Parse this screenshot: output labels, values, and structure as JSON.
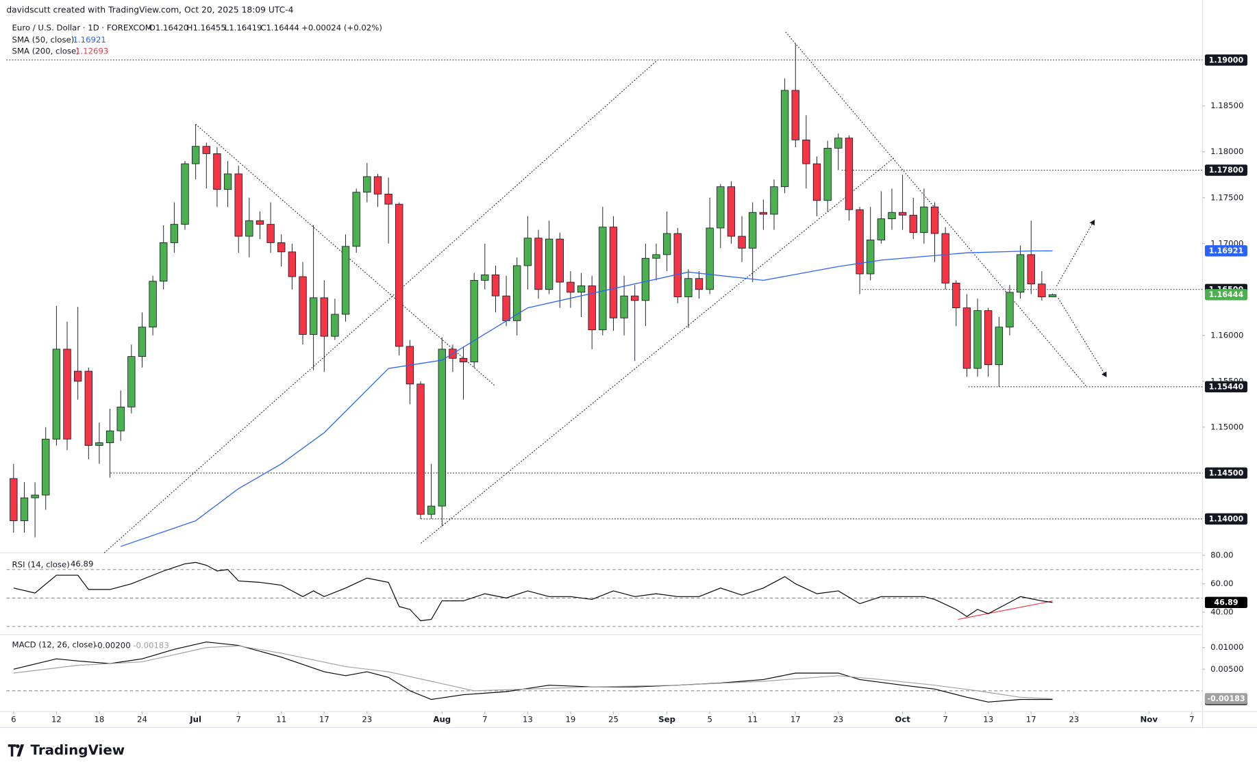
{
  "header": {
    "credit": "davidscutt created with TradingView.com, Oct 20, 2025 18:09 UTC-4",
    "brand": "TradingView"
  },
  "chart_data": [
    {
      "type": "candlestick",
      "title": "Euro / U.S. Dollar · 1D · FOREXCOM",
      "ohlc": [
        "O1.16420",
        "H1.16455",
        "L1.16419",
        "C1.16444"
      ],
      "change": "+0.00024 (+0.02%)",
      "up_color": "#4caf50",
      "down_color": "#f23645",
      "open": [
        1.1444,
        1.1398,
        1.1423,
        1.1426,
        1.1487,
        1.1585,
        1.1561,
        1.1561,
        1.148,
        1.1483,
        1.1496,
        1.1522,
        1.1577,
        1.1609,
        1.1659,
        1.1701,
        1.1721,
        1.1787,
        1.1806,
        1.1798,
        1.1759,
        1.1776,
        1.1708,
        1.1725,
        1.1721,
        1.1701,
        1.1691,
        1.1664,
        1.1601,
        1.1641,
        1.1599,
        1.1623,
        1.1697,
        1.1756,
        1.1773,
        1.1754,
        1.1743,
        1.1588,
        1.1547,
        1.1405,
        1.1414,
        1.1585,
        1.1575,
        1.1571,
        1.166,
        1.1666,
        1.1643,
        1.1616,
        1.1676,
        1.1706,
        1.165,
        1.1705,
        1.1658,
        1.1647,
        1.1654,
        1.1606,
        1.1718,
        1.1619,
        1.1643,
        1.1638,
        1.1684,
        1.1688,
        1.1711,
        1.1642,
        1.1662,
        1.165,
        1.1717,
        1.1762,
        1.1708,
        1.1695,
        1.1734,
        1.1732,
        1.1762,
        1.1867,
        1.1813,
        1.1787,
        1.1747,
        1.1804,
        1.1815,
        1.1737,
        1.1667,
        1.1704,
        1.1727,
        1.1734,
        1.1731,
        1.1712,
        1.174,
        1.1711,
        1.1657,
        1.163,
        1.1564,
        1.1627,
        1.1568,
        1.1609,
        1.1647,
        1.1688,
        1.1656,
        1.1642
      ],
      "high": [
        1.146,
        1.144,
        1.144,
        1.15,
        1.1632,
        1.1615,
        1.1631,
        1.1565,
        1.1505,
        1.152,
        1.154,
        1.159,
        1.1625,
        1.1665,
        1.172,
        1.1745,
        1.179,
        1.183,
        1.181,
        1.1805,
        1.179,
        1.1785,
        1.175,
        1.1735,
        1.1745,
        1.171,
        1.17,
        1.168,
        1.172,
        1.166,
        1.164,
        1.171,
        1.176,
        1.1788,
        1.1776,
        1.1772,
        1.1745,
        1.1595,
        1.155,
        1.146,
        1.1598,
        1.159,
        1.1588,
        1.1668,
        1.17,
        1.1676,
        1.1665,
        1.1685,
        1.173,
        1.1715,
        1.1725,
        1.1712,
        1.167,
        1.1668,
        1.1665,
        1.174,
        1.173,
        1.1665,
        1.1655,
        1.17,
        1.17,
        1.1735,
        1.1717,
        1.1672,
        1.167,
        1.175,
        1.1765,
        1.1768,
        1.173,
        1.1745,
        1.1748,
        1.177,
        1.188,
        1.1918,
        1.184,
        1.1795,
        1.1812,
        1.182,
        1.1818,
        1.174,
        1.174,
        1.1757,
        1.176,
        1.1775,
        1.175,
        1.176,
        1.1745,
        1.1718,
        1.166,
        1.1645,
        1.164,
        1.163,
        1.162,
        1.1655,
        1.1698,
        1.1725,
        1.167,
        1.16455
      ],
      "low": [
        1.1385,
        1.1385,
        1.138,
        1.141,
        1.148,
        1.1475,
        1.153,
        1.1465,
        1.146,
        1.1445,
        1.1485,
        1.1515,
        1.1565,
        1.16,
        1.165,
        1.169,
        1.1715,
        1.177,
        1.176,
        1.174,
        1.174,
        1.169,
        1.1685,
        1.1705,
        1.169,
        1.1675,
        1.165,
        1.159,
        1.1562,
        1.156,
        1.1595,
        1.1615,
        1.169,
        1.1745,
        1.174,
        1.17,
        1.1578,
        1.1525,
        1.14,
        1.14,
        1.1392,
        1.156,
        1.153,
        1.1565,
        1.165,
        1.1625,
        1.161,
        1.16,
        1.165,
        1.164,
        1.1645,
        1.163,
        1.163,
        1.162,
        1.1585,
        1.16,
        1.1605,
        1.16,
        1.1572,
        1.161,
        1.166,
        1.167,
        1.1635,
        1.1608,
        1.164,
        1.1645,
        1.1695,
        1.17,
        1.168,
        1.1658,
        1.1715,
        1.1715,
        1.1755,
        1.1805,
        1.176,
        1.173,
        1.1735,
        1.178,
        1.1725,
        1.1645,
        1.166,
        1.17,
        1.1715,
        1.1715,
        1.1705,
        1.17,
        1.168,
        1.165,
        1.161,
        1.1555,
        1.1555,
        1.1555,
        1.1544,
        1.16,
        1.164,
        1.1645,
        1.1638,
        1.16419
      ],
      "close": [
        1.1398,
        1.1423,
        1.1426,
        1.1487,
        1.1585,
        1.1487,
        1.155,
        1.148,
        1.1483,
        1.1496,
        1.1522,
        1.1577,
        1.1609,
        1.1659,
        1.1701,
        1.1721,
        1.1787,
        1.1806,
        1.1798,
        1.1759,
        1.1776,
        1.1708,
        1.1725,
        1.1721,
        1.1701,
        1.1691,
        1.1664,
        1.1601,
        1.1641,
        1.1599,
        1.1623,
        1.1697,
        1.1756,
        1.1773,
        1.1754,
        1.1743,
        1.1588,
        1.1547,
        1.1405,
        1.1414,
        1.1585,
        1.1575,
        1.1571,
        1.166,
        1.1666,
        1.1643,
        1.1616,
        1.1676,
        1.1706,
        1.165,
        1.1705,
        1.1658,
        1.1647,
        1.1654,
        1.1606,
        1.1718,
        1.1619,
        1.1643,
        1.1638,
        1.1684,
        1.1688,
        1.1711,
        1.1642,
        1.1662,
        1.165,
        1.1717,
        1.1762,
        1.1708,
        1.1695,
        1.1734,
        1.1732,
        1.1762,
        1.1867,
        1.1813,
        1.1787,
        1.1747,
        1.1804,
        1.1815,
        1.1737,
        1.1667,
        1.1704,
        1.1727,
        1.1734,
        1.1731,
        1.1712,
        1.174,
        1.1711,
        1.1657,
        1.163,
        1.1564,
        1.1627,
        1.1568,
        1.1609,
        1.1647,
        1.1688,
        1.1656,
        1.1642,
        1.16444
      ],
      "xlim": [
        -0.67,
        111
      ],
      "xticks": [
        {
          "value": 0,
          "label": "6"
        },
        {
          "value": 4,
          "label": "12"
        },
        {
          "value": 8,
          "label": "18"
        },
        {
          "value": 12,
          "label": "24"
        },
        {
          "value": 17,
          "label": "Jul"
        },
        {
          "value": 21,
          "label": "7"
        },
        {
          "value": 25,
          "label": "11"
        },
        {
          "value": 29,
          "label": "17"
        },
        {
          "value": 33,
          "label": "23"
        },
        {
          "value": 40,
          "label": "Aug"
        },
        {
          "value": 44,
          "label": "7"
        },
        {
          "value": 48,
          "label": "13"
        },
        {
          "value": 52,
          "label": "19"
        },
        {
          "value": 56,
          "label": "25"
        },
        {
          "value": 61,
          "label": "Sep"
        },
        {
          "value": 65,
          "label": "5"
        },
        {
          "value": 69,
          "label": "11"
        },
        {
          "value": 73,
          "label": "17"
        },
        {
          "value": 77,
          "label": "23"
        },
        {
          "value": 83,
          "label": "Oct"
        },
        {
          "value": 87,
          "label": "7"
        },
        {
          "value": 91,
          "label": "13"
        },
        {
          "value": 95,
          "label": "17"
        },
        {
          "value": 99,
          "label": "23"
        },
        {
          "value": 106,
          "label": "Nov"
        },
        {
          "value": 110,
          "label": "7"
        }
      ],
      "ylim": [
        1.1363,
        1.1941
      ],
      "yticks": [
        {
          "value": 1.15,
          "label": "1.15000"
        },
        {
          "value": 1.155,
          "label": "1.15500"
        },
        {
          "value": 1.16,
          "label": "1.16000"
        },
        {
          "value": 1.17,
          "label": "1.17000"
        },
        {
          "value": 1.175,
          "label": "1.17500"
        },
        {
          "value": 1.18,
          "label": "1.18000"
        },
        {
          "value": 1.185,
          "label": "1.18500"
        }
      ],
      "levels": [
        {
          "value": 1.19,
          "label": "1.19000"
        },
        {
          "value": 1.178,
          "label": "1.17800"
        },
        {
          "value": 1.165,
          "label": "1.16500"
        },
        {
          "value": 1.1544,
          "label": "1.15440"
        },
        {
          "value": 1.145,
          "label": "1.14500"
        },
        {
          "value": 1.14,
          "label": "1.14000"
        }
      ],
      "lines": [
        {
          "name": "SMA (50, close)",
          "color": "#2962ff",
          "last": 1.16921,
          "x": [
            10,
            17,
            21,
            25,
            29,
            35,
            40,
            48,
            56,
            63,
            70,
            77,
            81,
            89,
            95,
            97
          ],
          "values": [
            1.137,
            1.1398,
            1.1433,
            1.146,
            1.1494,
            1.1564,
            1.1573,
            1.163,
            1.1651,
            1.1669,
            1.166,
            1.1675,
            1.1682,
            1.169,
            1.1692,
            1.16921
          ]
        },
        {
          "name": "SMA (200, close)",
          "color": "#f23645",
          "last": 1.12693
        }
      ]
    },
    {
      "type": "line",
      "title": "RSI (14, close)",
      "color": "#000000",
      "x": [
        0,
        2,
        4,
        6,
        7,
        9,
        11,
        14,
        16,
        17,
        18,
        19,
        20,
        21,
        23,
        25,
        27,
        28,
        29,
        31,
        33,
        35,
        36,
        37,
        38,
        39,
        40,
        42,
        44,
        46,
        48,
        50,
        52,
        54,
        56,
        58,
        60,
        62,
        64,
        66,
        68,
        70,
        72,
        73,
        75,
        77,
        79,
        81,
        83,
        85,
        86,
        88,
        89,
        90,
        91,
        93,
        94,
        96,
        97
      ],
      "values": [
        57,
        53.5,
        66,
        66,
        56,
        56,
        60,
        69,
        74,
        75,
        73,
        69,
        70,
        62,
        61,
        59,
        51,
        55,
        51,
        57,
        64,
        61,
        44,
        42,
        34,
        35,
        48,
        48,
        53,
        50,
        55,
        51,
        51,
        49,
        55,
        51,
        53,
        51,
        51,
        57,
        52,
        57,
        65,
        60,
        53,
        55,
        46,
        51,
        51,
        51,
        49,
        42,
        37,
        42,
        39,
        47,
        51,
        48,
        46.89
      ],
      "ylim": [
        25.4,
        81.7
      ],
      "yticks": [
        {
          "value": 40,
          "label": "40.00"
        },
        {
          "value": 60,
          "label": "60.00"
        },
        {
          "value": 80,
          "label": "80.00"
        }
      ],
      "bands": [
        30,
        50,
        70
      ]
    },
    {
      "type": "line",
      "title": "MACD (12, 26, close)",
      "series": [
        {
          "color": "#000000",
          "last_label": "-0.00200",
          "x": [
            0,
            4,
            6,
            9,
            12,
            15,
            18,
            21,
            25,
            29,
            31,
            33,
            35,
            37,
            39,
            42,
            46,
            50,
            54,
            58,
            62,
            66,
            70,
            73,
            77,
            79,
            83,
            86,
            89,
            91,
            94,
            97
          ],
          "values": [
            0.005,
            0.0074,
            0.0069,
            0.0063,
            0.0074,
            0.0096,
            0.0113,
            0.0105,
            0.0078,
            0.0044,
            0.0035,
            0.0044,
            0.0031,
            0,
            -0.002,
            -0.0009,
            -0.0002,
            0.0013,
            0.0009,
            0.0009,
            0.0013,
            0.0018,
            0.0026,
            0.0041,
            0.0041,
            0.0026,
            0.0013,
            0.0004,
            -0.0015,
            -0.0026,
            -0.002,
            -0.002
          ]
        },
        {
          "color": "#a0a0a0",
          "last_label": "-0.00183",
          "x": [
            0,
            6,
            12,
            18,
            21,
            25,
            31,
            35,
            39,
            43,
            48,
            54,
            62,
            70,
            77,
            81,
            86,
            90,
            94,
            97
          ],
          "values": [
            0.0041,
            0.0059,
            0.0067,
            0.01,
            0.0104,
            0.0087,
            0.0056,
            0.0044,
            0.0022,
            0,
            0.0004,
            0.0009,
            0.0013,
            0.0022,
            0.0035,
            0.0026,
            0.0013,
            0,
            -0.0015,
            -0.00183
          ]
        }
      ],
      "ylim": [
        -0.0048,
        0.013
      ],
      "yticks": [
        {
          "value": 0.005,
          "label": "0.00500"
        },
        {
          "value": 0.01,
          "label": "0.01000"
        }
      ],
      "bands": [
        0
      ]
    }
  ]
}
